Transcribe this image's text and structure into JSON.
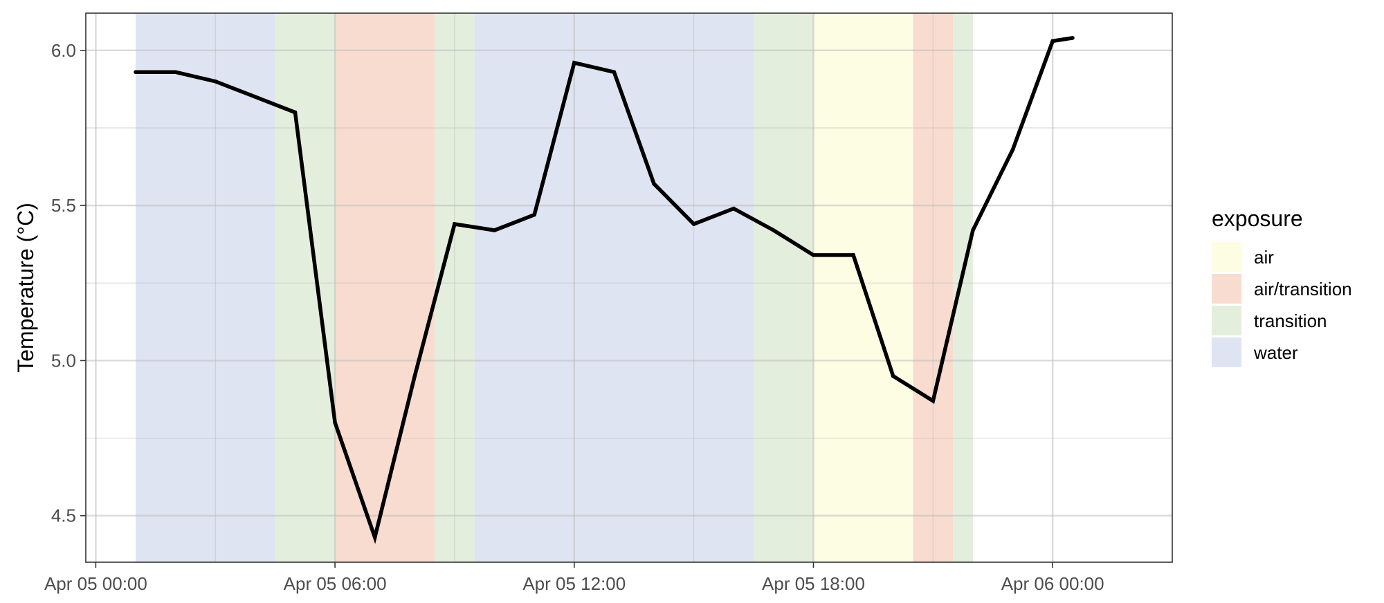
{
  "chart_data": {
    "type": "line",
    "title": "",
    "xlabel": "",
    "ylabel": "Temperature (°C)",
    "xlim": [
      "2024-04-04T23:45",
      "2024-04-06T03:00"
    ],
    "ylim": [
      4.35,
      6.12
    ],
    "x_ticks": [
      {
        "at": "2024-04-05T00:00",
        "label": "Apr 05 00:00"
      },
      {
        "at": "2024-04-05T06:00",
        "label": "Apr 05 06:00"
      },
      {
        "at": "2024-04-05T12:00",
        "label": "Apr 05 12:00"
      },
      {
        "at": "2024-04-05T18:00",
        "label": "Apr 05 18:00"
      },
      {
        "at": "2024-04-06T00:00",
        "label": "Apr 06 00:00"
      }
    ],
    "x_minor_ticks": [
      "2024-04-05T03:00",
      "2024-04-05T09:00",
      "2024-04-05T15:00",
      "2024-04-05T21:00"
    ],
    "y_ticks": [
      {
        "value": 4.5,
        "label": "4.5"
      },
      {
        "value": 5.0,
        "label": "5.0"
      },
      {
        "value": 5.5,
        "label": "5.5"
      },
      {
        "value": 6.0,
        "label": "6.0"
      }
    ],
    "y_minor_ticks": [
      4.75,
      5.25,
      5.75
    ],
    "grid": true,
    "legend": {
      "title": "exposure",
      "position": "right",
      "entries": [
        {
          "label": "air",
          "color": "#FDFDE4"
        },
        {
          "label": "air/transition",
          "color": "#F8DCD0"
        },
        {
          "label": "transition",
          "color": "#E3EFDC"
        },
        {
          "label": "water",
          "color": "#DFE4F2"
        }
      ]
    },
    "exposure_bands": [
      {
        "start": "2024-04-05T01:00",
        "end": "2024-04-05T04:30",
        "exposure": "water"
      },
      {
        "start": "2024-04-05T04:30",
        "end": "2024-04-05T06:00",
        "exposure": "transition"
      },
      {
        "start": "2024-04-05T06:00",
        "end": "2024-04-05T08:30",
        "exposure": "air/transition"
      },
      {
        "start": "2024-04-05T08:30",
        "end": "2024-04-05T09:30",
        "exposure": "transition"
      },
      {
        "start": "2024-04-05T09:30",
        "end": "2024-04-05T16:30",
        "exposure": "water"
      },
      {
        "start": "2024-04-05T16:30",
        "end": "2024-04-05T18:00",
        "exposure": "transition"
      },
      {
        "start": "2024-04-05T18:00",
        "end": "2024-04-05T20:30",
        "exposure": "air"
      },
      {
        "start": "2024-04-05T20:30",
        "end": "2024-04-05T21:30",
        "exposure": "air/transition"
      },
      {
        "start": "2024-04-05T21:30",
        "end": "2024-04-05T22:00",
        "exposure": "transition"
      }
    ],
    "series": [
      {
        "line_color": "#000000",
        "x": [
          "2024-04-05T01:00",
          "2024-04-05T02:00",
          "2024-04-05T03:00",
          "2024-04-05T04:00",
          "2024-04-05T05:00",
          "2024-04-05T06:00",
          "2024-04-05T07:00",
          "2024-04-05T08:00",
          "2024-04-05T09:00",
          "2024-04-05T10:00",
          "2024-04-05T11:00",
          "2024-04-05T12:00",
          "2024-04-05T13:00",
          "2024-04-05T14:00",
          "2024-04-05T15:00",
          "2024-04-05T16:00",
          "2024-04-05T17:00",
          "2024-04-05T18:00",
          "2024-04-05T19:00",
          "2024-04-05T20:00",
          "2024-04-05T21:00",
          "2024-04-05T22:00",
          "2024-04-05T23:00",
          "2024-04-06T00:00",
          "2024-04-06T00:30"
        ],
        "y": [
          5.93,
          5.93,
          5.9,
          5.85,
          5.8,
          4.8,
          4.43,
          4.95,
          5.44,
          5.42,
          5.47,
          5.96,
          5.93,
          5.57,
          5.44,
          5.49,
          5.42,
          5.34,
          5.34,
          4.95,
          4.87,
          5.42,
          5.68,
          6.03,
          6.04
        ]
      }
    ]
  }
}
